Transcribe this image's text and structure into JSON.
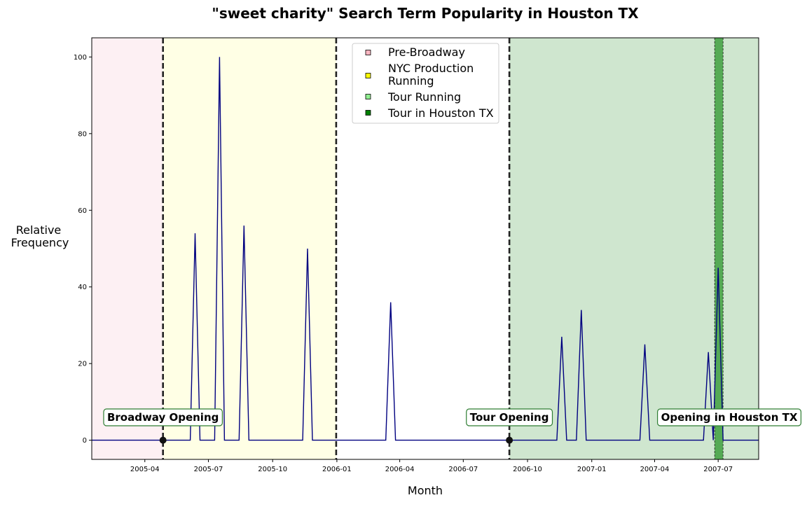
{
  "chart_data": {
    "type": "line",
    "title": "\"sweet charity\" Search Term Popularity in Houston TX",
    "xlabel": "Month",
    "ylabel_lines": [
      "Relative",
      "Frequency"
    ],
    "xlim": [
      "2005-01-15",
      "2007-08-28"
    ],
    "ylim": [
      -5,
      105
    ],
    "x_ticks": [
      {
        "date": "2005-04-01",
        "label": "2005-04"
      },
      {
        "date": "2005-07-01",
        "label": "2005-07"
      },
      {
        "date": "2005-10-01",
        "label": "2005-10"
      },
      {
        "date": "2006-01-01",
        "label": "2006-01"
      },
      {
        "date": "2006-04-01",
        "label": "2006-04"
      },
      {
        "date": "2006-07-01",
        "label": "2006-07"
      },
      {
        "date": "2006-10-01",
        "label": "2006-10"
      },
      {
        "date": "2007-01-01",
        "label": "2007-01"
      },
      {
        "date": "2007-04-01",
        "label": "2007-04"
      },
      {
        "date": "2007-07-01",
        "label": "2007-07"
      }
    ],
    "y_ticks": [
      0,
      20,
      40,
      60,
      80,
      100
    ],
    "series": [
      {
        "color": "#000080",
        "points": [
          {
            "date": "2005-01-15",
            "value": 0
          },
          {
            "date": "2005-06-05",
            "value": 0
          },
          {
            "date": "2005-06-12",
            "value": 54
          },
          {
            "date": "2005-06-19",
            "value": 0
          },
          {
            "date": "2005-07-10",
            "value": 0
          },
          {
            "date": "2005-07-17",
            "value": 100
          },
          {
            "date": "2005-07-24",
            "value": 0
          },
          {
            "date": "2005-08-14",
            "value": 0
          },
          {
            "date": "2005-08-21",
            "value": 56
          },
          {
            "date": "2005-08-28",
            "value": 0
          },
          {
            "date": "2005-11-13",
            "value": 0
          },
          {
            "date": "2005-11-20",
            "value": 50
          },
          {
            "date": "2005-11-27",
            "value": 0
          },
          {
            "date": "2006-03-12",
            "value": 0
          },
          {
            "date": "2006-03-19",
            "value": 36
          },
          {
            "date": "2006-03-26",
            "value": 0
          },
          {
            "date": "2006-11-12",
            "value": 0
          },
          {
            "date": "2006-11-19",
            "value": 27
          },
          {
            "date": "2006-11-26",
            "value": 0
          },
          {
            "date": "2006-12-10",
            "value": 0
          },
          {
            "date": "2006-12-17",
            "value": 34
          },
          {
            "date": "2006-12-24",
            "value": 0
          },
          {
            "date": "2007-03-11",
            "value": 0
          },
          {
            "date": "2007-03-18",
            "value": 25
          },
          {
            "date": "2007-03-25",
            "value": 0
          },
          {
            "date": "2007-06-10",
            "value": 0
          },
          {
            "date": "2007-06-17",
            "value": 23
          },
          {
            "date": "2007-06-24",
            "value": 0
          },
          {
            "date": "2007-07-01",
            "value": 45
          },
          {
            "date": "2007-07-08",
            "value": 0
          },
          {
            "date": "2007-08-28",
            "value": 0
          }
        ]
      }
    ],
    "shaded_regions": [
      {
        "label": "Pre-Broadway",
        "start": "2005-01-15",
        "end": "2005-04-27",
        "color": "#fdf0f3",
        "legend_color": "#ffb6c1"
      },
      {
        "label": "NYC Production Running",
        "start": "2005-04-27",
        "end": "2005-12-31",
        "color": "#ffffe5",
        "legend_color": "#ffff00"
      },
      {
        "label": "Tour Running",
        "start": "2006-09-05",
        "end": "2007-08-28",
        "color": "#cfe6cf",
        "legend_color": "#90ee90"
      },
      {
        "label": "Tour in Houston TX",
        "start": "2007-06-26",
        "end": "2007-07-08",
        "color": "#55aa55",
        "legend_color": "#008000"
      }
    ],
    "milestones": [
      {
        "date": "2005-04-27",
        "label": "Broadway Opening"
      },
      {
        "date": "2006-09-05",
        "label": "Tour Opening"
      },
      {
        "date": "2007-06-26",
        "label": "Opening in Houston TX"
      }
    ],
    "end_marker_date": "2005-12-31",
    "legend_placement": "top-center",
    "grid": false
  }
}
